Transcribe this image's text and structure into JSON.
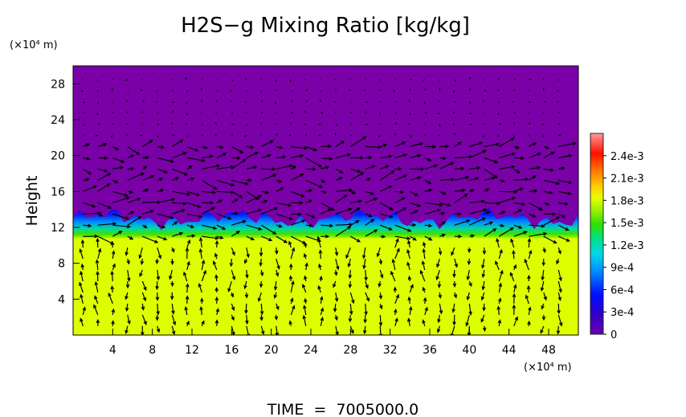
{
  "chart_data": {
    "type": "heatmap",
    "title": "H2S−g Mixing Ratio [kg/kg]",
    "xlabel": "",
    "x_unit_label": "(×10⁴ m)",
    "ylabel": "Height",
    "y_unit_label": "(×10⁴ m)",
    "footer": "TIME  =  7005000.0",
    "xlim": [
      0,
      51
    ],
    "ylim": [
      0,
      30
    ],
    "x_ticks": [
      "4",
      "8",
      "12",
      "16",
      "20",
      "24",
      "28",
      "32",
      "36",
      "40",
      "44",
      "48"
    ],
    "y_ticks": [
      "4",
      "8",
      "12",
      "16",
      "20",
      "24",
      "28"
    ],
    "colorbar": {
      "labels": [
        "0",
        "3e-4",
        "6e-4",
        "9e-4",
        "1.2e-3",
        "1.5e-3",
        "1.8e-3",
        "2.1e-3",
        "2.4e-3"
      ],
      "range": [
        0,
        0.0027
      ],
      "colors": [
        "#7a00a8",
        "#3a00c8",
        "#0020ff",
        "#0090ff",
        "#00e0e0",
        "#00e070",
        "#50e000",
        "#b0f000",
        "#e0ff00",
        "#ffd000",
        "#ff8000",
        "#ff2000",
        "#ff9090"
      ]
    },
    "field": {
      "description_regions": [
        {
          "layer": "lower",
          "height_range": [
            0,
            10.8
          ],
          "value": 0.00165,
          "color": "#dcff00"
        },
        {
          "layer": "transition",
          "height_range": [
            10.8,
            13.8
          ],
          "value_range": [
            0.0003,
            0.0015
          ]
        },
        {
          "layer": "upper",
          "height_range": [
            13.8,
            30
          ],
          "value": 0,
          "color": "#7a00a8"
        }
      ]
    },
    "wind_vectors": "velocity arrows over the domain, strongest near heights 11-20",
    "colors": {
      "background": "#7a00a8",
      "lower": "#dcff00",
      "arrow": "#000000"
    }
  }
}
